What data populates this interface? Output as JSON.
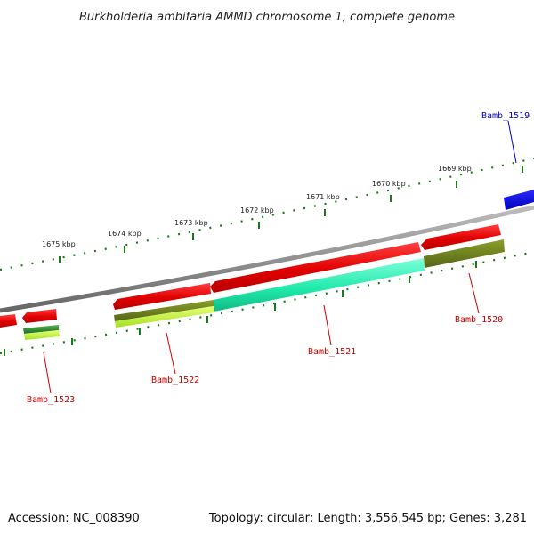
{
  "title": "Burkholderia ambifaria AMMD chromosome 1, complete genome",
  "footer": {
    "accession": "Accession: NC_008390",
    "topology": "Topology: circular; Length: 3,556,545 bp; Genes: 3,281"
  },
  "ruler": [
    {
      "label": "1675 kbp"
    },
    {
      "label": "1674 kbp"
    },
    {
      "label": "1673 kbp"
    },
    {
      "label": "1672 kbp"
    },
    {
      "label": "1671 kbp"
    },
    {
      "label": "1670 kbp"
    },
    {
      "label": "1669 kbp"
    }
  ],
  "genes": [
    {
      "label": "Bamb_1519",
      "color": "#0000cc"
    },
    {
      "label": "Bamb_1520",
      "color": "#cc0000"
    },
    {
      "label": "Bamb_1521",
      "color": "#cc0000"
    },
    {
      "label": "Bamb_1522",
      "color": "#cc0000"
    },
    {
      "label": "Bamb_1523",
      "color": "#cc0000"
    }
  ],
  "colors": {
    "cds": "#ee0000",
    "backbone": "#8a8a8a",
    "ruler": "#1a7a1a",
    "blue_feature": "#0000ee",
    "aqua_feature": "#1de8a8",
    "olive_feature": "#6b7d1e",
    "lime_feature": "#c6f83a",
    "green_feature": "#2f8f2f"
  }
}
